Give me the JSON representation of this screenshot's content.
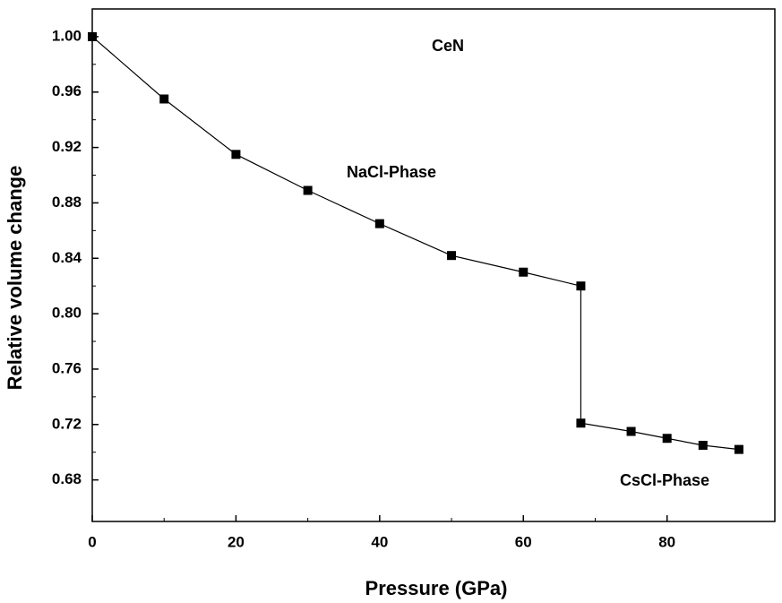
{
  "chart_data": {
    "type": "line",
    "xlabel": "Pressure (GPa)",
    "ylabel": "Relative volume change",
    "annotations": [
      "CeN",
      "NaCl-Phase",
      "CsCl-Phase"
    ],
    "x": [
      0,
      10,
      20,
      30,
      40,
      50,
      60,
      68,
      68,
      75,
      80,
      85,
      90
    ],
    "values": [
      1.0,
      0.955,
      0.915,
      0.889,
      0.865,
      0.842,
      0.83,
      0.82,
      0.721,
      0.715,
      0.71,
      0.705,
      0.702
    ],
    "color": "#000000",
    "xlim": [
      0,
      95
    ],
    "ylim": [
      0.65,
      1.02
    ],
    "xticks": [
      0,
      20,
      40,
      60,
      80
    ],
    "yticks": [
      0.68,
      0.72,
      0.76,
      {
        "value": 0.8,
        "label": "0.80"
      },
      0.84,
      0.88,
      0.92,
      0.96,
      {
        "value": 1,
        "label": "1.00"
      }
    ],
    "grid": false
  }
}
